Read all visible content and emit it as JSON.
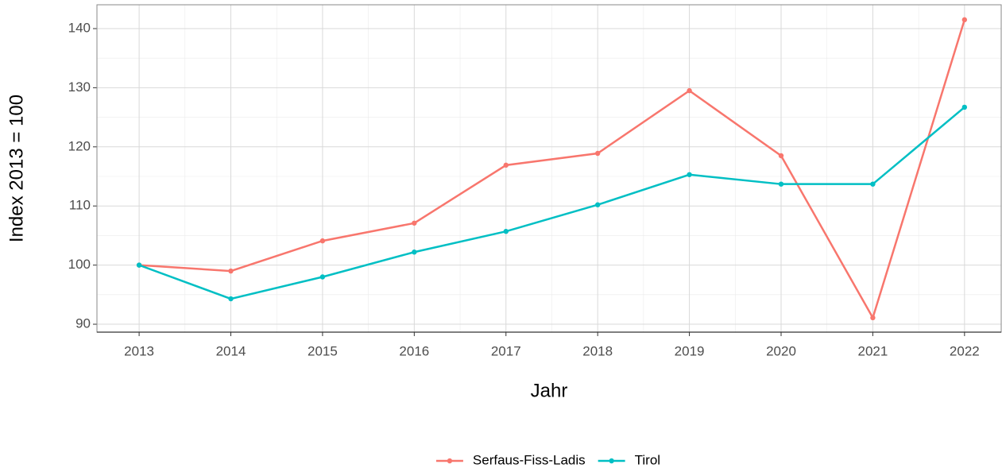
{
  "chart_data": {
    "type": "line",
    "x_label": "Jahr",
    "y_label": "Index  2013  = 100",
    "x": [
      2013,
      2014,
      2015,
      2016,
      2017,
      2018,
      2019,
      2020,
      2021,
      2022
    ],
    "series": [
      {
        "name": "Serfaus-Fiss-Ladis",
        "color": "#F8766D",
        "values": [
          100,
          99,
          104.1,
          107.1,
          116.9,
          118.9,
          129.5,
          118.5,
          91.1,
          141.5
        ]
      },
      {
        "name": "Tirol",
        "color": "#00BFC4",
        "values": [
          100,
          94.3,
          98,
          102.2,
          105.7,
          110.2,
          115.3,
          113.7,
          113.7,
          126.7
        ]
      }
    ],
    "xlim": [
      2012.54,
      2022.4
    ],
    "ylim": [
      88.66,
      144.03
    ],
    "xticks": [
      2013,
      2014,
      2015,
      2016,
      2017,
      2018,
      2019,
      2020,
      2021,
      2022
    ],
    "yticks": [
      90,
      100,
      110,
      120,
      130,
      140
    ],
    "grid": true,
    "legend": "bottom"
  }
}
